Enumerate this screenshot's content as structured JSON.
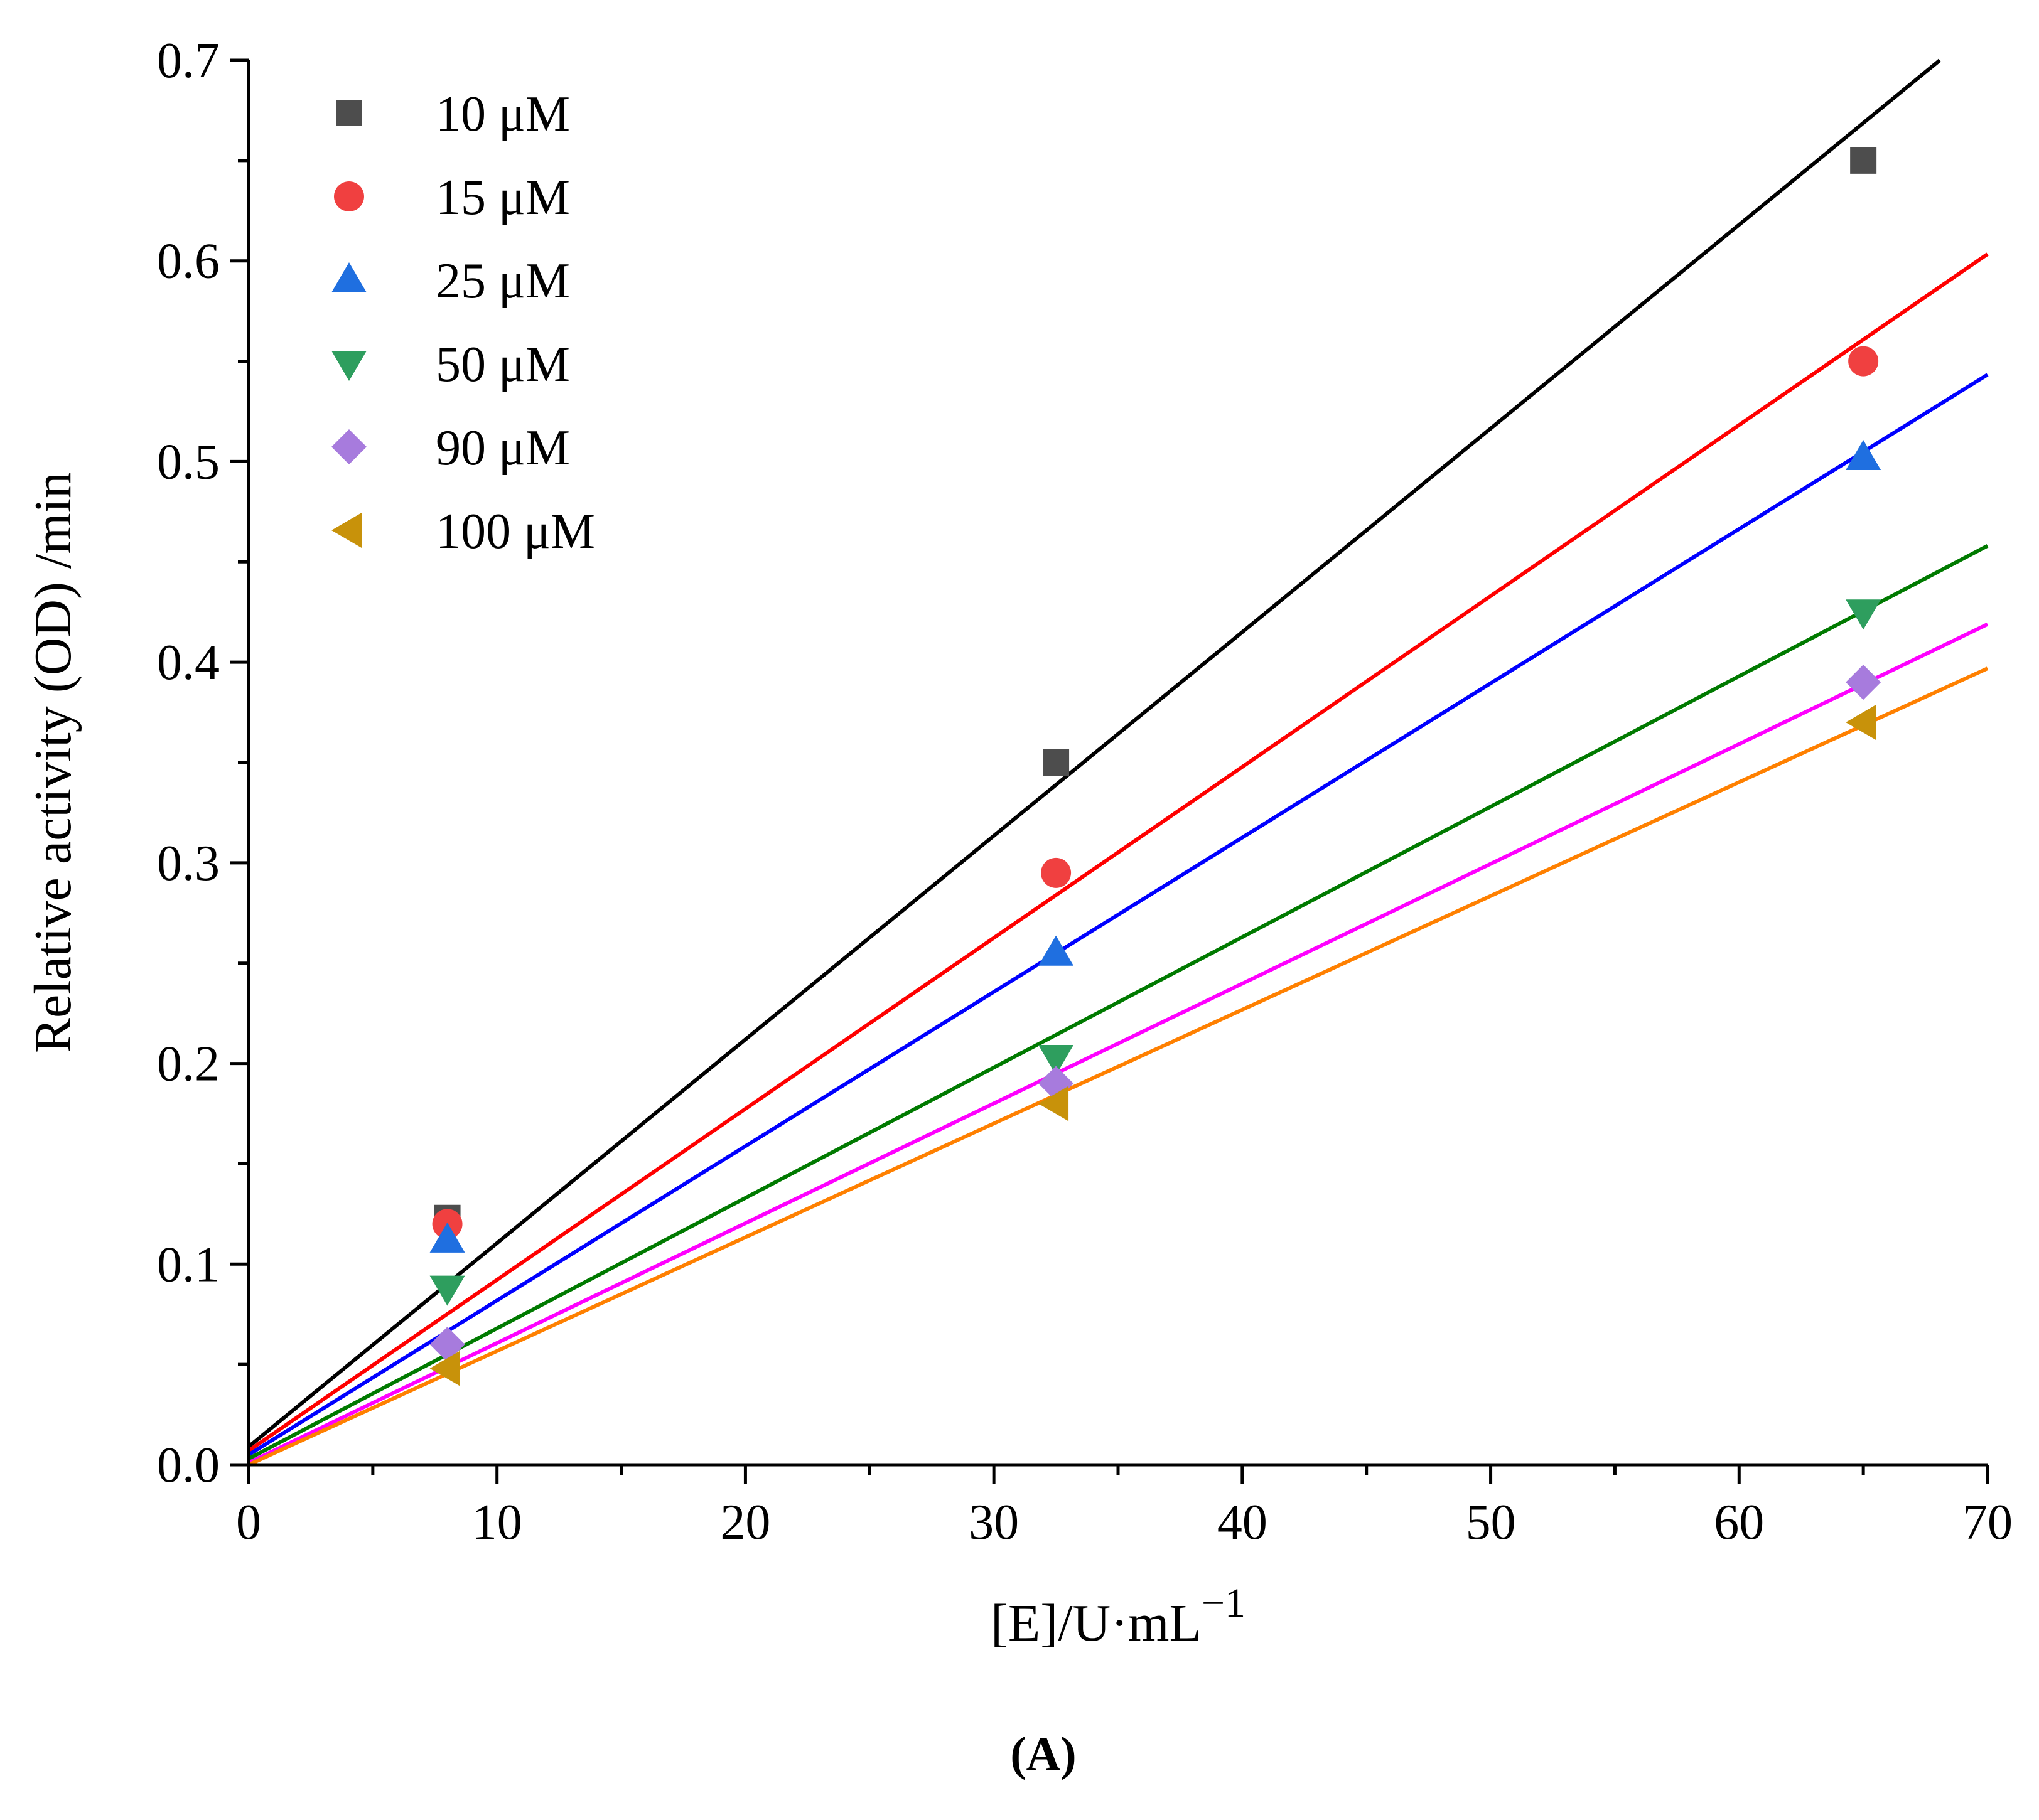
{
  "chart_data": {
    "type": "scatter",
    "title": "",
    "xlabel": "[E]/U·mL",
    "xlabel_sup": "−1",
    "ylabel": "Relative activity (OD) /min",
    "panel_label": "(A)",
    "xlim": [
      0,
      70
    ],
    "ylim": [
      0,
      0.7
    ],
    "x_ticks": [
      0,
      10,
      20,
      30,
      40,
      50,
      60,
      70
    ],
    "x_tick_labels": [
      "0",
      "10",
      "20",
      "30",
      "40",
      "50",
      "60",
      "70"
    ],
    "y_ticks": [
      0.0,
      0.1,
      0.2,
      0.3,
      0.4,
      0.5,
      0.6,
      0.7
    ],
    "y_tick_labels": [
      "0.0",
      "0.1",
      "0.2",
      "0.3",
      "0.4",
      "0.5",
      "0.6",
      "0.7"
    ],
    "grid": false,
    "legend_position": "top-left",
    "series": [
      {
        "name": "10 μM",
        "marker": "square",
        "marker_color": "#4d4d4d",
        "line_color": "#000000",
        "x": [
          8,
          32.5,
          65
        ],
        "y": [
          0.123,
          0.35,
          0.65
        ],
        "fit": {
          "intercept": 0.009,
          "slope": 0.01015
        }
      },
      {
        "name": "15 μM",
        "marker": "circle",
        "marker_color": "#f04040",
        "line_color": "#ff0000",
        "x": [
          8,
          32.5,
          65
        ],
        "y": [
          0.12,
          0.295,
          0.55
        ],
        "fit": {
          "intercept": 0.007,
          "slope": 0.00852
        }
      },
      {
        "name": "25 μM",
        "marker": "triangle-up",
        "marker_color": "#1f6fe0",
        "line_color": "#0000ff",
        "x": [
          8,
          32.5,
          65
        ],
        "y": [
          0.112,
          0.255,
          0.502
        ],
        "fit": {
          "intercept": 0.005,
          "slope": 0.00769
        }
      },
      {
        "name": "50 μM",
        "marker": "triangle-down",
        "marker_color": "#2e9e5e",
        "line_color": "#007a00",
        "x": [
          8,
          32.5,
          65
        ],
        "y": [
          0.088,
          0.203,
          0.425
        ],
        "fit": {
          "intercept": 0.003,
          "slope": 0.0065
        }
      },
      {
        "name": "90 μM",
        "marker": "diamond",
        "marker_color": "#a77bdd",
        "line_color": "#ff00ff",
        "x": [
          8,
          32.5,
          65
        ],
        "y": [
          0.06,
          0.19,
          0.39
        ],
        "fit": {
          "intercept": 0.001,
          "slope": 0.00597
        }
      },
      {
        "name": "100 μM",
        "marker": "triangle-left",
        "marker_color": "#c8920a",
        "line_color": "#ff8000",
        "x": [
          8,
          32.5,
          65
        ],
        "y": [
          0.048,
          0.18,
          0.37
        ],
        "fit": {
          "intercept": 0.0,
          "slope": 0.00567
        }
      }
    ]
  }
}
